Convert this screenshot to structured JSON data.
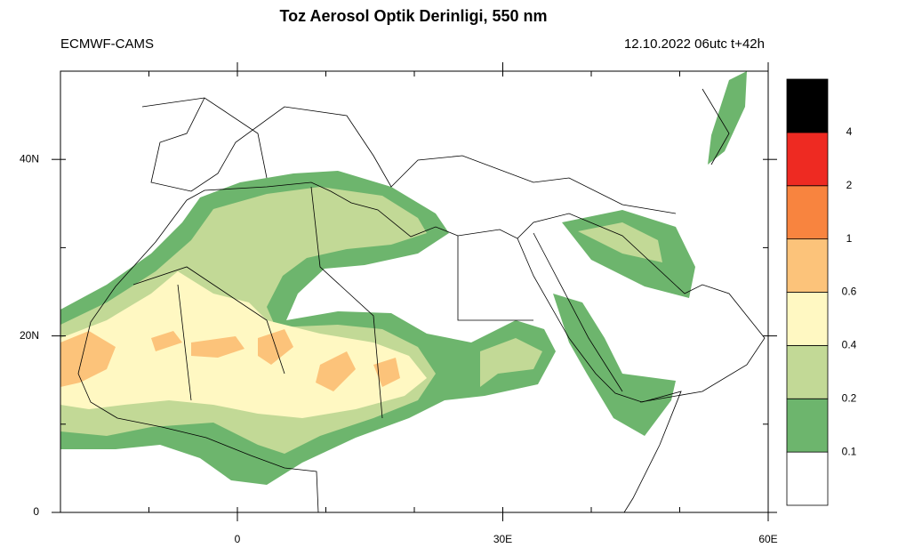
{
  "map": {
    "title": "Toz Aerosol Optik Derinligi, 550 nm",
    "source": "ECMWF-CAMS",
    "valid_time": "12.10.2022 06utc t+42h",
    "xlim": [
      -20,
      60
    ],
    "ylim": [
      0,
      50
    ],
    "xticks": [
      {
        "value": 0,
        "label": "0"
      },
      {
        "value": 30,
        "label": "30E"
      },
      {
        "value": 60,
        "label": "60E"
      }
    ],
    "yticks": [
      {
        "value": 0,
        "label": "0"
      },
      {
        "value": 20,
        "label": "20N"
      },
      {
        "value": 40,
        "label": "40N"
      }
    ],
    "colorbar": {
      "levels": [
        0.1,
        0.2,
        0.4,
        0.6,
        1,
        2,
        4
      ],
      "colors": [
        "#ffffff",
        "#6db56d",
        "#c2d996",
        "#fff8c2",
        "#fcc37a",
        "#f8843f",
        "#ee2a22",
        "#000000"
      ]
    }
  }
}
